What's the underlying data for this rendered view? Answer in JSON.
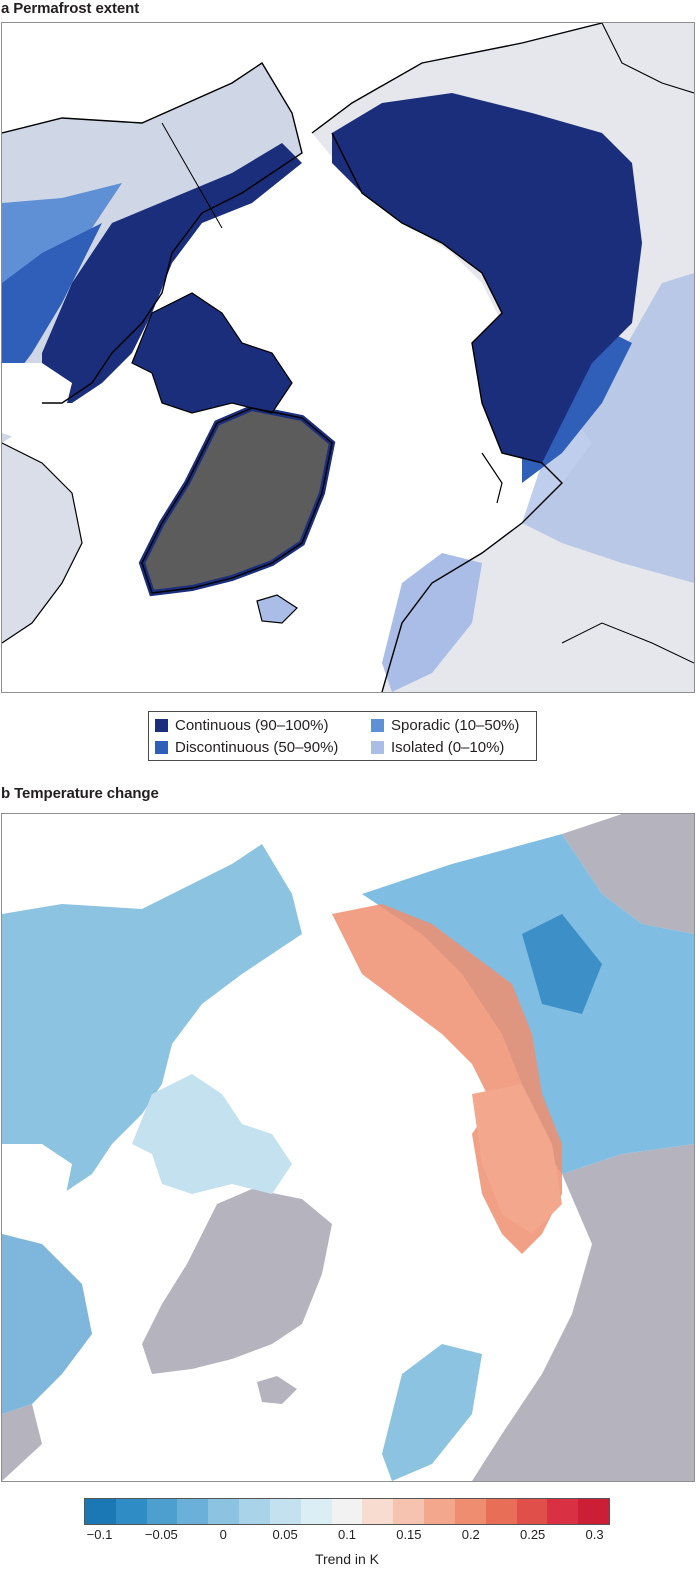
{
  "panel_a": {
    "letter": "a",
    "title": "Permafrost extent",
    "legend": [
      {
        "label": "Continuous (90–100%)",
        "color": "#1a2e7c"
      },
      {
        "label": "Sporadic (10–50%)",
        "color": "#5f8fd4"
      },
      {
        "label": "Discontinuous (50–90%)",
        "color": "#2f5fb8"
      },
      {
        "label": "Isolated (0–10%)",
        "color": "#a9bde6"
      }
    ]
  },
  "panel_b": {
    "letter": "b",
    "title": "Temperature change",
    "colorbar": {
      "title": "Trend in K",
      "ticks": [
        "−0.1",
        "−0.05",
        "0",
        "0.05",
        "0.1",
        "0.15",
        "0.2",
        "0.25",
        "0.3"
      ],
      "colors": [
        "#1b78b4",
        "#2f8cc4",
        "#4d9fcf",
        "#6bb0d8",
        "#8cc3e0",
        "#a9d3e8",
        "#c3e1ef",
        "#dbeef5",
        "#f2f2f2",
        "#f9dcd0",
        "#f6c3b0",
        "#f3a88e",
        "#ef8d70",
        "#e86e58",
        "#e04f4a",
        "#d93043",
        "#cc1e35"
      ]
    },
    "land_colors": {
      "no_data": "#b5b3bd",
      "warming": "#ee8f70",
      "cooling": "#7fbde2"
    }
  }
}
